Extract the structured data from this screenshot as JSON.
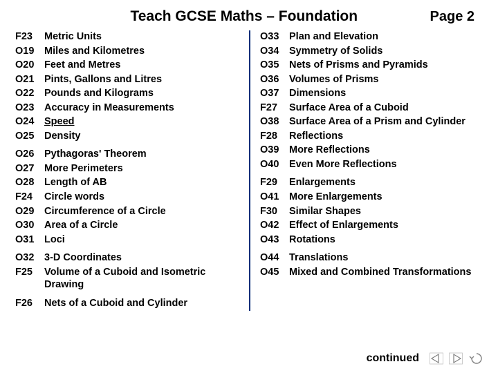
{
  "header": {
    "title": "Teach GCSE Maths – Foundation",
    "page": "Page 2"
  },
  "left": [
    [
      {
        "code": "F23",
        "label": "Metric Units"
      },
      {
        "code": "O19",
        "label": "Miles and Kilometres"
      },
      {
        "code": "O20",
        "label": "Feet and Metres"
      },
      {
        "code": "O21",
        "label": "Pints, Gallons and Litres"
      },
      {
        "code": "O22",
        "label": "Pounds and Kilograms"
      },
      {
        "code": "O23",
        "label": "Accuracy in Measurements"
      },
      {
        "code": "O24",
        "label": "Speed",
        "underline": true
      },
      {
        "code": "O25",
        "label": "Density"
      }
    ],
    [
      {
        "code": "O26",
        "label": "Pythagoras' Theorem"
      },
      {
        "code": "O27",
        "label": "More Perimeters"
      },
      {
        "code": "O28",
        "label": "Length of AB"
      },
      {
        "code": "F24",
        "label": "Circle words"
      },
      {
        "code": "O29",
        "label": "Circumference of a Circle"
      },
      {
        "code": "O30",
        "label": "Area of a Circle"
      },
      {
        "code": "O31",
        "label": "Loci"
      }
    ],
    [
      {
        "code": "O32",
        "label": "3-D Coordinates"
      },
      {
        "code": "F25",
        "label": "Volume of a Cuboid and Isometric Drawing"
      }
    ],
    [
      {
        "code": "F26",
        "label": "Nets of a Cuboid and Cylinder"
      }
    ]
  ],
  "right": [
    [
      {
        "code": "O33",
        "label": "Plan and Elevation"
      },
      {
        "code": "O34",
        "label": "Symmetry of Solids"
      },
      {
        "code": "O35",
        "label": "Nets of Prisms and Pyramids"
      },
      {
        "code": "O36",
        "label": "Volumes of Prisms"
      },
      {
        "code": "O37",
        "label": "Dimensions"
      },
      {
        "code": "F27",
        "label": "Surface Area of a Cuboid"
      },
      {
        "code": "O38",
        "label": "Surface Area of a Prism and Cylinder"
      },
      {
        "code": "F28",
        "label": "Reflections"
      },
      {
        "code": "O39",
        "label": "More Reflections"
      },
      {
        "code": "O40",
        "label": "Even More Reflections"
      }
    ],
    [
      {
        "code": "F29",
        "label": "Enlargements"
      },
      {
        "code": "O41",
        "label": "More Enlargements"
      },
      {
        "code": "F30",
        "label": "Similar Shapes"
      },
      {
        "code": "O42",
        "label": "Effect of Enlargements"
      },
      {
        "code": "O43",
        "label": "Rotations"
      }
    ],
    [
      {
        "code": "O44",
        "label": "Translations"
      },
      {
        "code": "O45",
        "label": "Mixed and Combined Transformations"
      }
    ]
  ],
  "footer": {
    "continued": "continued"
  },
  "style": {
    "divider_color": "#0b2e7a",
    "nav_icon_color": "#808080",
    "text_color": "#000000",
    "background": "#ffffff",
    "font_family": "Comic Sans MS"
  }
}
